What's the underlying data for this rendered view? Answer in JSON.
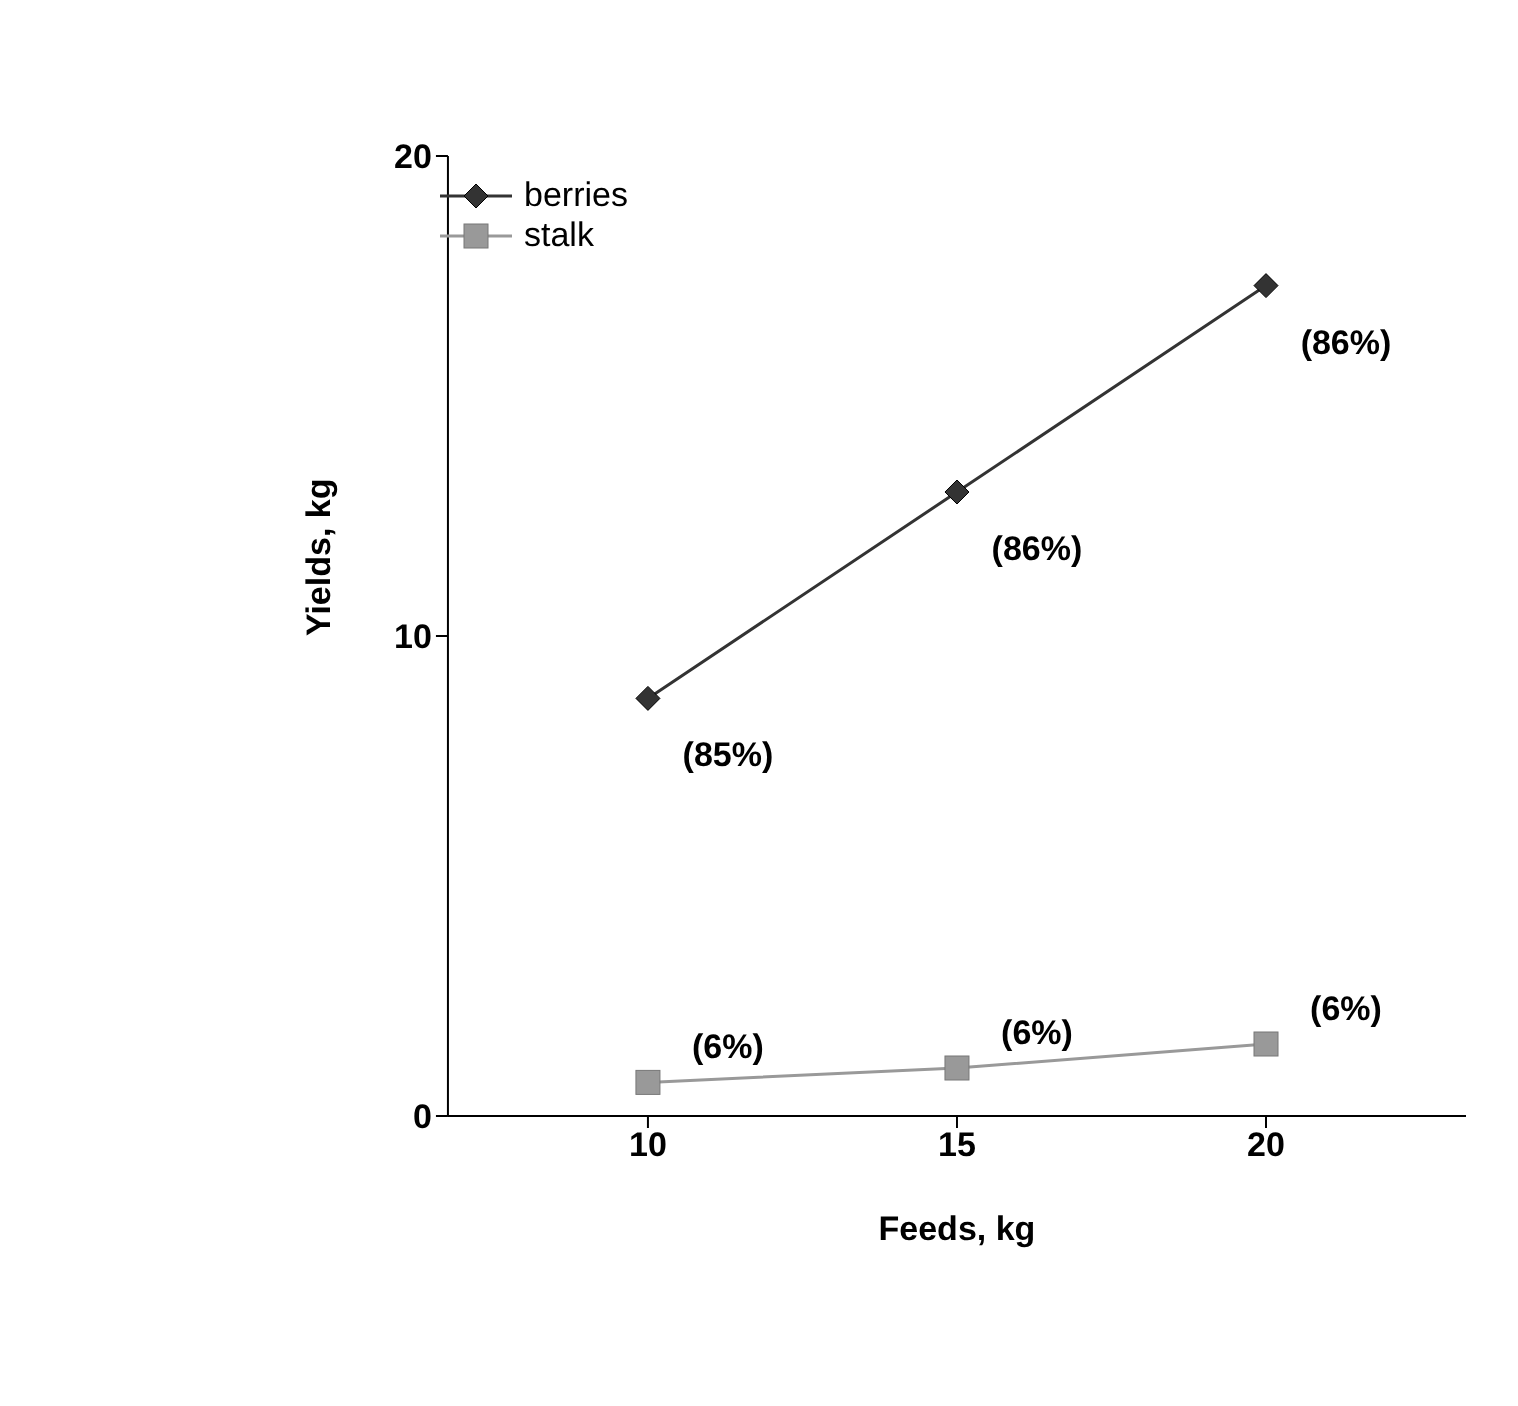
{
  "chart_data": {
    "type": "line",
    "xlabel": "Feeds, kg",
    "ylabel": "Yields, kg",
    "categories": [
      "10",
      "15",
      "20"
    ],
    "series": [
      {
        "name": "berries",
        "color": "#333333",
        "marker": "diamond",
        "values": [
          8.7,
          13.0,
          17.3
        ]
      },
      {
        "name": "stalk",
        "color": "#999999",
        "marker": "square",
        "values": [
          0.7,
          1.0,
          1.5
        ]
      }
    ],
    "annotations": [
      {
        "text": "(85%)",
        "x": "10",
        "y": 8.7
      },
      {
        "text": "(86%)",
        "x": "15",
        "y": 13.0
      },
      {
        "text": "(86%)",
        "x": "20",
        "y": 17.3
      },
      {
        "text": "(6%)",
        "x": "10",
        "y": 0.7
      },
      {
        "text": "(6%)",
        "x": "15",
        "y": 1.0
      },
      {
        "text": "(6%)",
        "x": "20",
        "y": 1.5
      }
    ],
    "ylim": [
      0,
      20
    ],
    "yticks": [
      0,
      10,
      20
    ],
    "grid": false,
    "legend": "top left"
  }
}
